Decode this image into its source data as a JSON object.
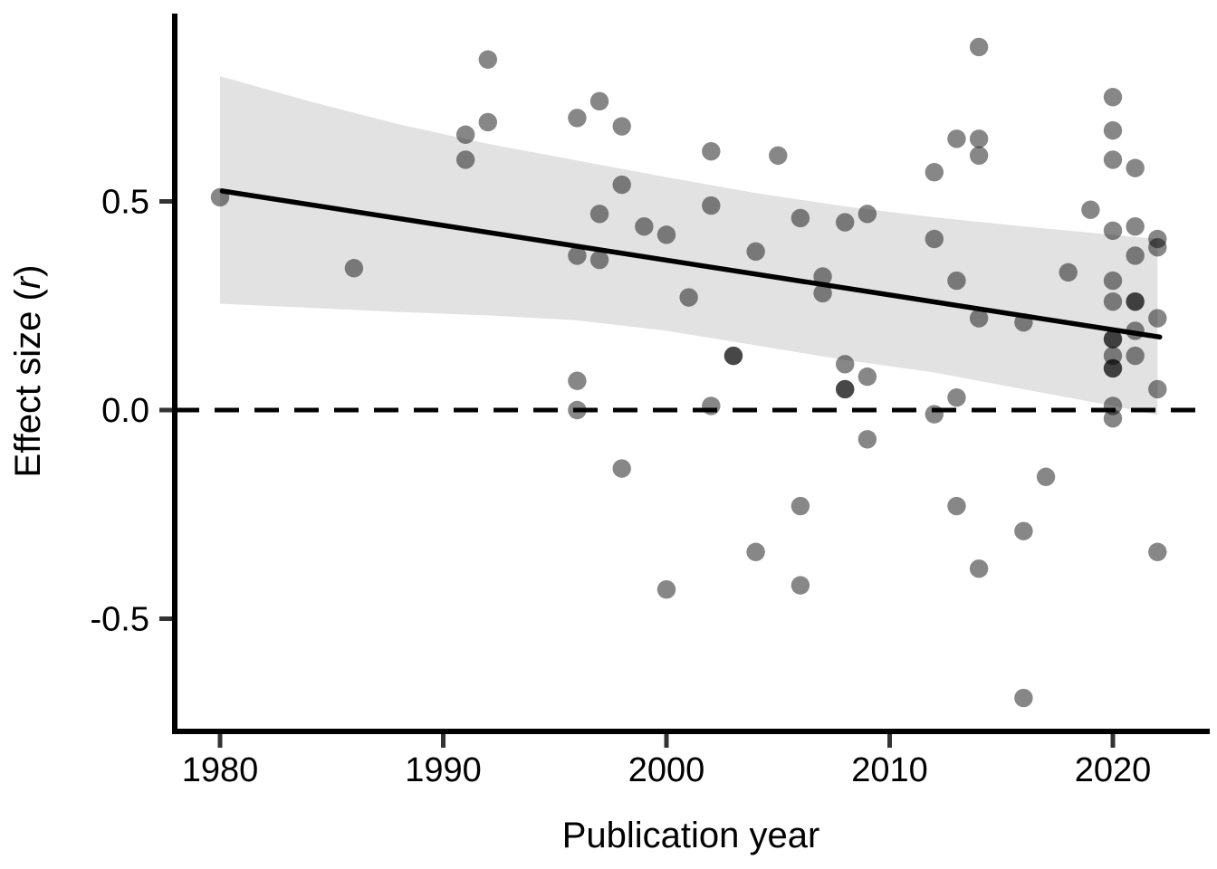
{
  "chart_data": {
    "type": "scatter",
    "title": "",
    "xlabel": "Publication year",
    "ylabel": "Effect size (r)",
    "ylabel_parts": {
      "prefix": "Effect size (",
      "italic": "r",
      "suffix": ")"
    },
    "x_ticks": [
      {
        "value": 1980,
        "label": "1980"
      },
      {
        "value": 1990,
        "label": "1990"
      },
      {
        "value": 2000,
        "label": "2000"
      },
      {
        "value": 2010,
        "label": "2010"
      },
      {
        "value": 2020,
        "label": "2020"
      }
    ],
    "y_ticks": [
      {
        "value": 0.5,
        "label": "0.5"
      },
      {
        "value": 0.0,
        "label": "0.0"
      },
      {
        "value": -0.5,
        "label": "-0.5"
      }
    ],
    "xlim": [
      1977.9,
      2024.3
    ],
    "ylim": [
      -0.77,
      0.95
    ],
    "grid": "off",
    "legend": "none",
    "zero_line_y": 0,
    "trend_line": {
      "x1": 1980.1,
      "y1": 0.525,
      "x2": 2022.1,
      "y2": 0.175
    },
    "ci_band": {
      "years": [
        1980,
        1984,
        1988,
        1992,
        1996,
        2000,
        2004,
        2008,
        2012,
        2016,
        2020,
        2022
      ],
      "upper": [
        0.8,
        0.74,
        0.685,
        0.638,
        0.598,
        0.558,
        0.52,
        0.488,
        0.462,
        0.44,
        0.42,
        0.41
      ],
      "lower": [
        0.255,
        0.245,
        0.235,
        0.227,
        0.215,
        0.19,
        0.155,
        0.12,
        0.09,
        0.05,
        0.01,
        -0.012
      ]
    },
    "points": [
      [
        1980,
        0.51
      ],
      [
        1986,
        0.34
      ],
      [
        1991,
        0.66
      ],
      [
        1991,
        0.6
      ],
      [
        1992,
        0.84
      ],
      [
        1992,
        0.69
      ],
      [
        1996,
        0.7
      ],
      [
        1996,
        0.37
      ],
      [
        1996,
        0.07
      ],
      [
        1996,
        0.0
      ],
      [
        1997,
        0.74
      ],
      [
        1997,
        0.47
      ],
      [
        1997,
        0.36
      ],
      [
        1998,
        0.68
      ],
      [
        1998,
        0.54
      ],
      [
        1998,
        -0.14
      ],
      [
        1999,
        0.44
      ],
      [
        2000,
        0.42
      ],
      [
        2000,
        -0.43
      ],
      [
        2001,
        0.27
      ],
      [
        2002,
        0.62
      ],
      [
        2002,
        0.49
      ],
      [
        2002,
        0.01
      ],
      [
        2003,
        0.13
      ],
      [
        2003,
        0.13
      ],
      [
        2004,
        0.38
      ],
      [
        2004,
        -0.34
      ],
      [
        2005,
        0.61
      ],
      [
        2006,
        0.46
      ],
      [
        2006,
        -0.23
      ],
      [
        2006,
        -0.42
      ],
      [
        2007,
        0.32
      ],
      [
        2007,
        0.28
      ],
      [
        2008,
        0.45
      ],
      [
        2008,
        0.11
      ],
      [
        2008,
        0.05
      ],
      [
        2008,
        0.05
      ],
      [
        2009,
        0.47
      ],
      [
        2009,
        0.08
      ],
      [
        2009,
        -0.07
      ],
      [
        2012,
        0.57
      ],
      [
        2012,
        0.41
      ],
      [
        2012,
        -0.01
      ],
      [
        2013,
        0.65
      ],
      [
        2013,
        0.31
      ],
      [
        2013,
        0.03
      ],
      [
        2013,
        -0.23
      ],
      [
        2014,
        0.87
      ],
      [
        2014,
        0.65
      ],
      [
        2014,
        0.61
      ],
      [
        2014,
        0.22
      ],
      [
        2014,
        -0.38
      ],
      [
        2016,
        0.21
      ],
      [
        2016,
        -0.29
      ],
      [
        2016,
        -0.69
      ],
      [
        2017,
        -0.16
      ],
      [
        2018,
        0.33
      ],
      [
        2019,
        0.48
      ],
      [
        2020,
        0.75
      ],
      [
        2020,
        0.67
      ],
      [
        2020,
        0.6
      ],
      [
        2020,
        0.43
      ],
      [
        2020,
        0.31
      ],
      [
        2020,
        0.26
      ],
      [
        2020,
        0.17
      ],
      [
        2020,
        0.17
      ],
      [
        2020,
        0.13
      ],
      [
        2020,
        0.1
      ],
      [
        2020,
        0.1
      ],
      [
        2020,
        0.01
      ],
      [
        2020,
        -0.02
      ],
      [
        2021,
        0.58
      ],
      [
        2021,
        0.44
      ],
      [
        2021,
        0.37
      ],
      [
        2021,
        0.26
      ],
      [
        2021,
        0.26
      ],
      [
        2021,
        0.19
      ],
      [
        2021,
        0.13
      ],
      [
        2022,
        0.41
      ],
      [
        2022,
        0.39
      ],
      [
        2022,
        0.22
      ],
      [
        2022,
        0.05
      ],
      [
        2022,
        -0.34
      ]
    ],
    "colors": {
      "point": "rgba(0,0,0,0.47)",
      "band": "#e2e2e2",
      "trend_line": "#000000",
      "zero_line": "#000000",
      "axis_line": "#000000",
      "tick": "#333333",
      "background": "#ffffff"
    }
  }
}
